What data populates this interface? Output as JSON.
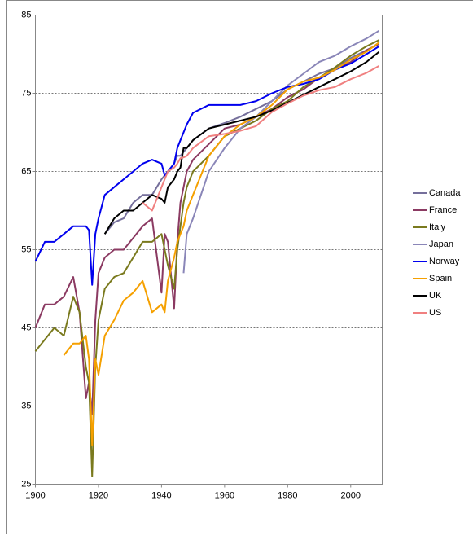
{
  "chart_data": {
    "type": "line",
    "x": [
      1900,
      1903,
      1906,
      1909,
      1912,
      1914,
      1916,
      1917,
      1918,
      1919,
      1920,
      1922,
      1925,
      1928,
      1931,
      1934,
      1937,
      1940,
      1941,
      1942,
      1944,
      1945,
      1946,
      1947,
      1948,
      1950,
      1955,
      1960,
      1965,
      1970,
      1975,
      1980,
      1985,
      1990,
      1995,
      2000,
      2005,
      2009
    ],
    "xlim": [
      1900,
      2010
    ],
    "xticks": [
      1900,
      1920,
      1940,
      1960,
      1980,
      2000
    ],
    "ylim": [
      25,
      85
    ],
    "yticks": [
      25,
      35,
      45,
      55,
      65,
      75,
      85
    ],
    "grid": true,
    "legend": "right",
    "series": [
      {
        "name": "Canada",
        "color": "#756f9b",
        "values": [
          null,
          null,
          null,
          null,
          null,
          null,
          null,
          null,
          null,
          null,
          null,
          57,
          58.5,
          59,
          61,
          62,
          62,
          64,
          64.5,
          65,
          66,
          67,
          67,
          67.5,
          68,
          69,
          70.5,
          71.2,
          72,
          73,
          74,
          75.5,
          76.5,
          77.5,
          78.2,
          79.5,
          80.5,
          81.3
        ]
      },
      {
        "name": "France",
        "color": "#8b3a62",
        "values": [
          45,
          48,
          48,
          49,
          51.5,
          47,
          36,
          38,
          34,
          46,
          52,
          54,
          55,
          55,
          56.5,
          58,
          59,
          49.5,
          57,
          56,
          47.5,
          56,
          61,
          63,
          65,
          66.5,
          68.5,
          70.5,
          71,
          72,
          73,
          74.5,
          75.5,
          77,
          78,
          79,
          80.5,
          81.3
        ]
      },
      {
        "name": "Italy",
        "color": "#7a7a1e",
        "values": [
          42,
          43.5,
          45,
          44,
          49,
          47,
          40,
          38,
          26,
          40,
          46,
          50,
          51.5,
          52,
          54,
          56,
          56,
          57,
          55,
          53,
          50,
          55,
          58,
          61,
          63,
          65,
          67,
          69.5,
          70.5,
          71.5,
          73,
          74,
          75.8,
          77,
          78.3,
          79.8,
          81,
          81.8
        ]
      },
      {
        "name": "Japan",
        "color": "#8a86b8",
        "values": [
          null,
          null,
          null,
          null,
          null,
          null,
          null,
          null,
          null,
          null,
          null,
          null,
          null,
          null,
          null,
          null,
          null,
          null,
          null,
          null,
          null,
          null,
          null,
          52,
          57,
          59,
          65,
          68,
          70.5,
          72,
          74,
          76,
          77.5,
          79,
          79.8,
          81,
          82,
          83
        ]
      },
      {
        "name": "Norway",
        "color": "#0000ee",
        "values": [
          53.5,
          56,
          56,
          57,
          58,
          58,
          58,
          57.5,
          50.5,
          57,
          59,
          62,
          63,
          64,
          65,
          66,
          66.5,
          66,
          64.5,
          65,
          66,
          68,
          69,
          70,
          71,
          72.5,
          73.5,
          73.5,
          73.5,
          74,
          75,
          75.8,
          76.2,
          76.8,
          78,
          78.8,
          80,
          81
        ]
      },
      {
        "name": "Spain",
        "color": "#f5a000",
        "values": [
          null,
          null,
          null,
          41.5,
          43,
          43,
          44,
          41,
          30,
          41,
          39,
          44,
          46,
          48.5,
          49.5,
          51,
          47,
          48,
          47,
          51,
          54,
          56,
          57,
          58,
          60,
          62,
          67,
          69.5,
          71,
          72,
          73.5,
          75.5,
          76.5,
          77,
          78,
          79.3,
          80.3,
          81.5
        ]
      },
      {
        "name": "UK",
        "color": "#000000",
        "values": [
          null,
          null,
          null,
          null,
          null,
          null,
          null,
          null,
          null,
          null,
          null,
          57,
          59,
          60,
          60,
          61,
          62,
          61.5,
          61,
          63,
          64,
          65,
          65.5,
          68,
          68,
          69,
          70.5,
          71,
          71.5,
          72,
          72.8,
          73.8,
          74.8,
          75.8,
          76.8,
          77.8,
          79,
          80.3
        ]
      },
      {
        "name": "US",
        "color": "#f08080",
        "values": [
          null,
          null,
          null,
          null,
          null,
          null,
          null,
          null,
          null,
          null,
          null,
          null,
          null,
          null,
          null,
          61,
          60,
          63,
          64,
          65,
          65.5,
          66,
          66.7,
          66.8,
          67,
          68,
          69.5,
          69.8,
          70.2,
          70.8,
          72.6,
          73.7,
          74.7,
          75.4,
          75.8,
          76.8,
          77.6,
          78.5
        ]
      }
    ]
  }
}
